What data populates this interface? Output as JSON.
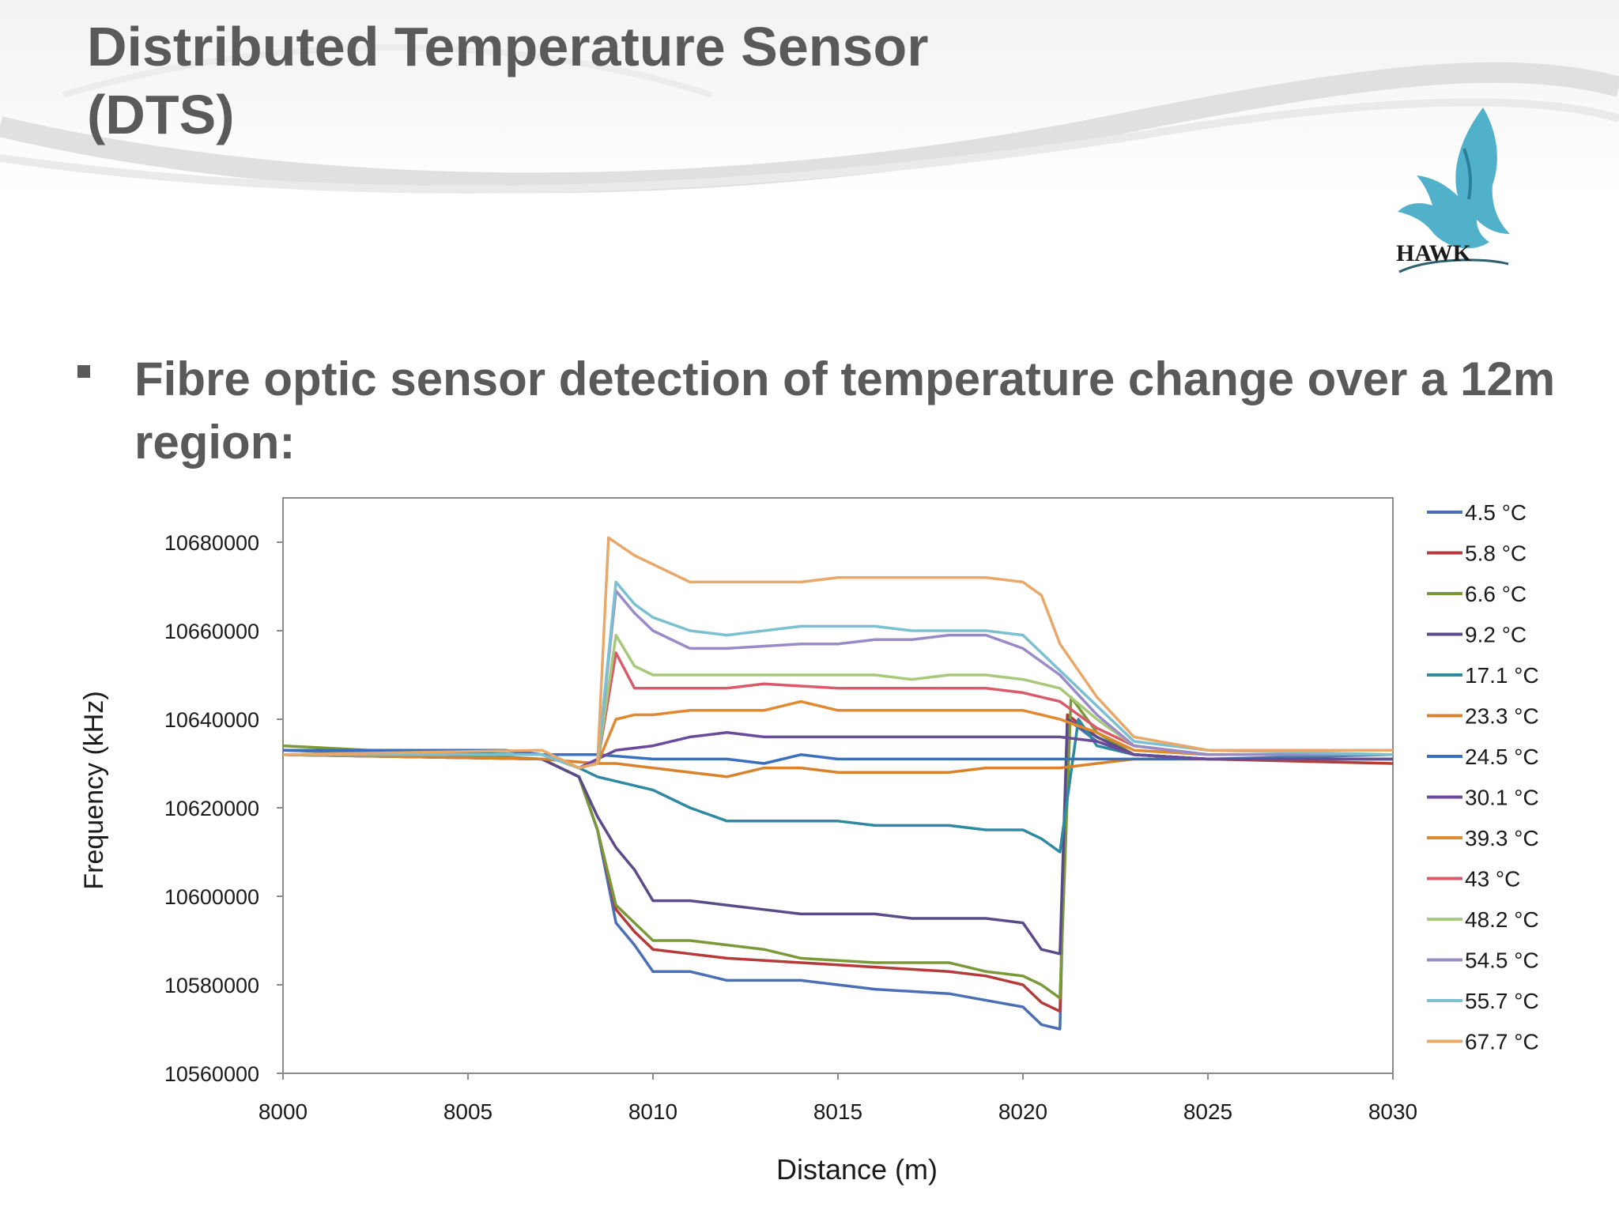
{
  "slide": {
    "title_line1": "Distributed Temperature Sensor",
    "title_line2": "(DTS)",
    "bullet_text": "Fibre optic sensor detection of temperature change over a 12m region:",
    "logo_text": "HAWK"
  },
  "colors": {
    "title_text": "#5a5a5a",
    "logo_blue": "#3fa9c4"
  },
  "chart_data": {
    "type": "line",
    "title": "",
    "xlabel": "Distance (m)",
    "ylabel": "Frequency (kHz)",
    "xlim": [
      8000,
      8030
    ],
    "ylim": [
      10560000,
      10690000
    ],
    "x_ticks": [
      8000,
      8005,
      8010,
      8015,
      8020,
      8025,
      8030
    ],
    "y_ticks": [
      10560000,
      10580000,
      10600000,
      10620000,
      10640000,
      10660000,
      10680000
    ],
    "grid": false,
    "legend_position": "right",
    "series": [
      {
        "name": "4.5 °C",
        "color": "#4a6fb5",
        "points": [
          [
            8000,
            10633000
          ],
          [
            8007,
            10631000
          ],
          [
            8008,
            10627000
          ],
          [
            8008.5,
            10615000
          ],
          [
            8009,
            10594000
          ],
          [
            8009.5,
            10589000
          ],
          [
            8010,
            10583000
          ],
          [
            8011,
            10583000
          ],
          [
            8012,
            10581000
          ],
          [
            8014,
            10581000
          ],
          [
            8015,
            10580000
          ],
          [
            8016,
            10579000
          ],
          [
            8018,
            10578000
          ],
          [
            8020,
            10575000
          ],
          [
            8020.5,
            10571000
          ],
          [
            8021,
            10570000
          ],
          [
            8021.2,
            10640000
          ],
          [
            8022,
            10635000
          ],
          [
            8023,
            10632000
          ],
          [
            8025,
            10631000
          ],
          [
            8030,
            10631000
          ]
        ]
      },
      {
        "name": "5.8 °C",
        "color": "#b53a3a",
        "points": [
          [
            8000,
            10632000
          ],
          [
            8007,
            10631000
          ],
          [
            8008,
            10627000
          ],
          [
            8008.5,
            10615000
          ],
          [
            8009,
            10597000
          ],
          [
            8009.5,
            10592000
          ],
          [
            8010,
            10588000
          ],
          [
            8011,
            10587000
          ],
          [
            8012,
            10586000
          ],
          [
            8014,
            10585000
          ],
          [
            8016,
            10584000
          ],
          [
            8018,
            10583000
          ],
          [
            8019,
            10582000
          ],
          [
            8020,
            10580000
          ],
          [
            8020.5,
            10576000
          ],
          [
            8021,
            10574000
          ],
          [
            8021.2,
            10641000
          ],
          [
            8022,
            10636000
          ],
          [
            8023,
            10632000
          ],
          [
            8025,
            10631000
          ],
          [
            8030,
            10630000
          ]
        ]
      },
      {
        "name": "6.6 °C",
        "color": "#7a9a3a",
        "points": [
          [
            8000,
            10634000
          ],
          [
            8007,
            10631000
          ],
          [
            8008,
            10627000
          ],
          [
            8008.5,
            10615000
          ],
          [
            8009,
            10598000
          ],
          [
            8009.5,
            10594000
          ],
          [
            8010,
            10590000
          ],
          [
            8011,
            10590000
          ],
          [
            8012,
            10589000
          ],
          [
            8013,
            10588000
          ],
          [
            8014,
            10586000
          ],
          [
            8016,
            10585000
          ],
          [
            8018,
            10585000
          ],
          [
            8019,
            10583000
          ],
          [
            8020,
            10582000
          ],
          [
            8020.5,
            10580000
          ],
          [
            8021,
            10577000
          ],
          [
            8021.3,
            10645000
          ],
          [
            8022,
            10637000
          ],
          [
            8023,
            10632000
          ],
          [
            8025,
            10631000
          ],
          [
            8030,
            10631000
          ]
        ]
      },
      {
        "name": "9.2 °C",
        "color": "#5a4a8a",
        "points": [
          [
            8000,
            10632000
          ],
          [
            8007,
            10631000
          ],
          [
            8008,
            10627000
          ],
          [
            8008.5,
            10618000
          ],
          [
            8009,
            10611000
          ],
          [
            8009.5,
            10606000
          ],
          [
            8010,
            10599000
          ],
          [
            8011,
            10599000
          ],
          [
            8012,
            10598000
          ],
          [
            8013,
            10597000
          ],
          [
            8014,
            10596000
          ],
          [
            8016,
            10596000
          ],
          [
            8017,
            10595000
          ],
          [
            8018,
            10595000
          ],
          [
            8019,
            10595000
          ],
          [
            8020,
            10594000
          ],
          [
            8020.5,
            10588000
          ],
          [
            8021,
            10587000
          ],
          [
            8021.2,
            10640000
          ],
          [
            8022,
            10636000
          ],
          [
            8023,
            10632000
          ],
          [
            8025,
            10631000
          ],
          [
            8030,
            10631000
          ]
        ]
      },
      {
        "name": "17.1 °C",
        "color": "#2e8aa0",
        "points": [
          [
            8000,
            10633000
          ],
          [
            8007,
            10632000
          ],
          [
            8008,
            10629000
          ],
          [
            8008.5,
            10627000
          ],
          [
            8009,
            10626000
          ],
          [
            8010,
            10624000
          ],
          [
            8011,
            10620000
          ],
          [
            8012,
            10617000
          ],
          [
            8014,
            10617000
          ],
          [
            8015,
            10617000
          ],
          [
            8016,
            10616000
          ],
          [
            8018,
            10616000
          ],
          [
            8019,
            10615000
          ],
          [
            8020,
            10615000
          ],
          [
            8020.5,
            10613000
          ],
          [
            8021,
            10610000
          ],
          [
            8021.5,
            10640000
          ],
          [
            8022,
            10634000
          ],
          [
            8023,
            10632000
          ],
          [
            8025,
            10631000
          ],
          [
            8030,
            10632000
          ]
        ]
      },
      {
        "name": "23.3 °C",
        "color": "#d9822b",
        "points": [
          [
            8000,
            10632000
          ],
          [
            8007,
            10631000
          ],
          [
            8008.5,
            10630000
          ],
          [
            8009,
            10630000
          ],
          [
            8010,
            10629000
          ],
          [
            8011,
            10628000
          ],
          [
            8012,
            10627000
          ],
          [
            8013,
            10629000
          ],
          [
            8014,
            10629000
          ],
          [
            8015,
            10628000
          ],
          [
            8016,
            10628000
          ],
          [
            8018,
            10628000
          ],
          [
            8019,
            10629000
          ],
          [
            8020,
            10629000
          ],
          [
            8021,
            10629000
          ],
          [
            8022,
            10630000
          ],
          [
            8023,
            10631000
          ],
          [
            8025,
            10631000
          ],
          [
            8030,
            10631000
          ]
        ]
      },
      {
        "name": "24.5 °C",
        "color": "#3a6fc0",
        "points": [
          [
            8000,
            10633000
          ],
          [
            8006,
            10633000
          ],
          [
            8007,
            10632000
          ],
          [
            8008.5,
            10632000
          ],
          [
            8010,
            10631000
          ],
          [
            8012,
            10631000
          ],
          [
            8013,
            10630000
          ],
          [
            8014,
            10632000
          ],
          [
            8015,
            10631000
          ],
          [
            8018,
            10631000
          ],
          [
            8020,
            10631000
          ],
          [
            8022,
            10631000
          ],
          [
            8025,
            10631000
          ],
          [
            8030,
            10631000
          ]
        ]
      },
      {
        "name": "30.1 °C",
        "color": "#6a4a9a",
        "points": [
          [
            8000,
            10632000
          ],
          [
            8007,
            10632000
          ],
          [
            8008,
            10629000
          ],
          [
            8008.5,
            10631000
          ],
          [
            8009,
            10633000
          ],
          [
            8010,
            10634000
          ],
          [
            8011,
            10636000
          ],
          [
            8012,
            10637000
          ],
          [
            8013,
            10636000
          ],
          [
            8015,
            10636000
          ],
          [
            8017,
            10636000
          ],
          [
            8019,
            10636000
          ],
          [
            8020,
            10636000
          ],
          [
            8021,
            10636000
          ],
          [
            8022,
            10635000
          ],
          [
            8023,
            10632000
          ],
          [
            8025,
            10631000
          ],
          [
            8030,
            10631000
          ]
        ]
      },
      {
        "name": "39.3 °C",
        "color": "#e0892e",
        "points": [
          [
            8000,
            10632000
          ],
          [
            8007,
            10632000
          ],
          [
            8008,
            10629000
          ],
          [
            8008.5,
            10630000
          ],
          [
            8009,
            10640000
          ],
          [
            8009.5,
            10641000
          ],
          [
            8010,
            10641000
          ],
          [
            8011,
            10642000
          ],
          [
            8013,
            10642000
          ],
          [
            8014,
            10644000
          ],
          [
            8015,
            10642000
          ],
          [
            8017,
            10642000
          ],
          [
            8019,
            10642000
          ],
          [
            8020,
            10642000
          ],
          [
            8021,
            10640000
          ],
          [
            8022,
            10637000
          ],
          [
            8023,
            10633000
          ],
          [
            8025,
            10632000
          ],
          [
            8030,
            10632000
          ]
        ]
      },
      {
        "name": "43 °C",
        "color": "#d95a6a",
        "points": [
          [
            8000,
            10632000
          ],
          [
            8007,
            10632000
          ],
          [
            8008,
            10629000
          ],
          [
            8008.5,
            10630000
          ],
          [
            8009,
            10655000
          ],
          [
            8009.5,
            10647000
          ],
          [
            8010,
            10647000
          ],
          [
            8012,
            10647000
          ],
          [
            8013,
            10648000
          ],
          [
            8015,
            10647000
          ],
          [
            8017,
            10647000
          ],
          [
            8019,
            10647000
          ],
          [
            8020,
            10646000
          ],
          [
            8021,
            10644000
          ],
          [
            8022,
            10638000
          ],
          [
            8023,
            10634000
          ],
          [
            8025,
            10632000
          ],
          [
            8030,
            10632000
          ]
        ]
      },
      {
        "name": "48.2 °C",
        "color": "#a8c87a",
        "points": [
          [
            8000,
            10632000
          ],
          [
            8007,
            10632000
          ],
          [
            8008,
            10629000
          ],
          [
            8008.5,
            10630000
          ],
          [
            8009,
            10659000
          ],
          [
            8009.5,
            10652000
          ],
          [
            8010,
            10650000
          ],
          [
            8012,
            10650000
          ],
          [
            8014,
            10650000
          ],
          [
            8016,
            10650000
          ],
          [
            8017,
            10649000
          ],
          [
            8018,
            10650000
          ],
          [
            8019,
            10650000
          ],
          [
            8020,
            10649000
          ],
          [
            8021,
            10647000
          ],
          [
            8022,
            10640000
          ],
          [
            8023,
            10634000
          ],
          [
            8025,
            10632000
          ],
          [
            8030,
            10632000
          ]
        ]
      },
      {
        "name": "54.5 °C",
        "color": "#9a8ac8",
        "points": [
          [
            8000,
            10632000
          ],
          [
            8007,
            10632000
          ],
          [
            8008,
            10629000
          ],
          [
            8008.5,
            10630000
          ],
          [
            8009,
            10669000
          ],
          [
            8009.5,
            10664000
          ],
          [
            8010,
            10660000
          ],
          [
            8011,
            10656000
          ],
          [
            8012,
            10656000
          ],
          [
            8014,
            10657000
          ],
          [
            8015,
            10657000
          ],
          [
            8016,
            10658000
          ],
          [
            8017,
            10658000
          ],
          [
            8018,
            10659000
          ],
          [
            8019,
            10659000
          ],
          [
            8020,
            10656000
          ],
          [
            8021,
            10650000
          ],
          [
            8022,
            10641000
          ],
          [
            8023,
            10634000
          ],
          [
            8025,
            10632000
          ],
          [
            8030,
            10632000
          ]
        ]
      },
      {
        "name": "55.7 °C",
        "color": "#7ac0d0",
        "points": [
          [
            8000,
            10632000
          ],
          [
            8007,
            10632000
          ],
          [
            8008,
            10629000
          ],
          [
            8008.5,
            10630000
          ],
          [
            8009,
            10671000
          ],
          [
            8009.5,
            10666000
          ],
          [
            8010,
            10663000
          ],
          [
            8011,
            10660000
          ],
          [
            8012,
            10659000
          ],
          [
            8013,
            10660000
          ],
          [
            8014,
            10661000
          ],
          [
            8016,
            10661000
          ],
          [
            8017,
            10660000
          ],
          [
            8019,
            10660000
          ],
          [
            8020,
            10659000
          ],
          [
            8021,
            10651000
          ],
          [
            8022,
            10643000
          ],
          [
            8023,
            10635000
          ],
          [
            8025,
            10633000
          ],
          [
            8030,
            10632000
          ]
        ]
      },
      {
        "name": "67.7 °C",
        "color": "#e8a86a",
        "points": [
          [
            8000,
            10632000
          ],
          [
            8007,
            10633000
          ],
          [
            8008,
            10629000
          ],
          [
            8008.5,
            10630000
          ],
          [
            8008.8,
            10681000
          ],
          [
            8009.5,
            10677000
          ],
          [
            8010,
            10675000
          ],
          [
            8011,
            10671000
          ],
          [
            8012,
            10671000
          ],
          [
            8014,
            10671000
          ],
          [
            8015,
            10672000
          ],
          [
            8017,
            10672000
          ],
          [
            8019,
            10672000
          ],
          [
            8020,
            10671000
          ],
          [
            8020.5,
            10668000
          ],
          [
            8021,
            10657000
          ],
          [
            8022,
            10645000
          ],
          [
            8023,
            10636000
          ],
          [
            8025,
            10633000
          ],
          [
            8030,
            10633000
          ]
        ]
      }
    ]
  }
}
